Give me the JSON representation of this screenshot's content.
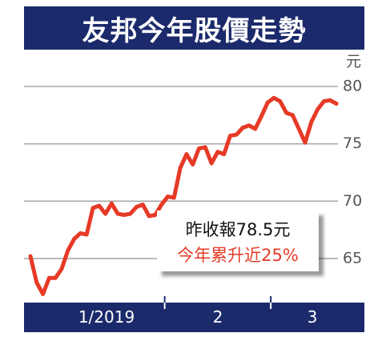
{
  "colors": {
    "line": "#e63a27",
    "banner": "#1b2a6b",
    "grid": "#a8a8a8",
    "tick_label": "#555555",
    "highlight_text": "#e63a27"
  },
  "chart_data": {
    "type": "line",
    "title": "友邦今年股價走勢",
    "ylabel": "元",
    "xlabel": "",
    "ylim": [
      61,
      83
    ],
    "yticks": [
      80,
      75,
      70,
      65
    ],
    "ytick_labels": [
      "80",
      "75",
      "70",
      "65"
    ],
    "xtick_labels": [
      "1/2019",
      "2",
      "3"
    ],
    "grid": true,
    "annotations": [
      "昨收報78.5元",
      "今年累升近25%"
    ],
    "x": [
      "2019-01-02",
      "2019-01-03",
      "2019-01-04",
      "2019-01-07",
      "2019-01-08",
      "2019-01-09",
      "2019-01-10",
      "2019-01-11",
      "2019-01-14",
      "2019-01-15",
      "2019-01-16",
      "2019-01-17",
      "2019-01-18",
      "2019-01-21",
      "2019-01-22",
      "2019-01-23",
      "2019-01-24",
      "2019-01-25",
      "2019-01-28",
      "2019-01-29",
      "2019-01-30",
      "2019-01-31",
      "2019-02-01",
      "2019-02-04",
      "2019-02-08",
      "2019-02-11",
      "2019-02-12",
      "2019-02-13",
      "2019-02-14",
      "2019-02-15",
      "2019-02-18",
      "2019-02-19",
      "2019-02-20",
      "2019-02-21",
      "2019-02-22",
      "2019-02-25",
      "2019-02-26",
      "2019-02-27",
      "2019-02-28",
      "2019-03-01",
      "2019-03-04",
      "2019-03-05",
      "2019-03-06",
      "2019-03-07",
      "2019-03-08",
      "2019-03-11",
      "2019-03-12",
      "2019-03-13",
      "2019-03-14",
      "2019-03-15"
    ],
    "series": [
      {
        "values": [
          65.2,
          62.9,
          61.9,
          63.3,
          63.3,
          64.1,
          65.7,
          66.7,
          67.2,
          67.1,
          69.4,
          69.6,
          68.9,
          69.8,
          68.9,
          68.8,
          68.9,
          69.5,
          69.7,
          68.7,
          68.8,
          69.7,
          70.4,
          70.3,
          72.9,
          74.1,
          73.2,
          74.6,
          74.7,
          73.3,
          74.3,
          74.1,
          75.7,
          75.8,
          76.4,
          76.6,
          76.3,
          77.4,
          78.6,
          79.0,
          78.7,
          77.7,
          77.5,
          76.3,
          75.1,
          76.9,
          78.0,
          78.7,
          78.8,
          78.5
        ]
      }
    ]
  }
}
